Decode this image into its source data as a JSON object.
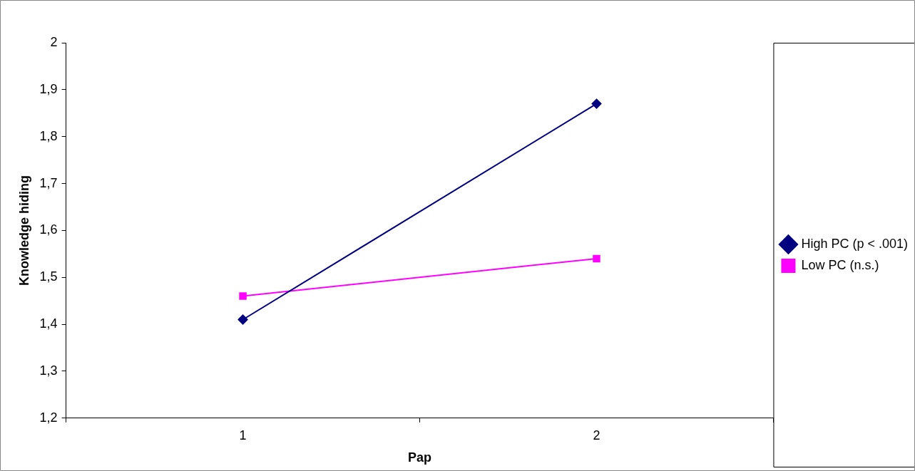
{
  "chart_data": {
    "type": "line",
    "xlabel": "Pap",
    "ylabel": "Knowledge hiding",
    "categories": [
      "1",
      "2"
    ],
    "series": [
      {
        "name": "High PC (p < .001)",
        "color": "#000080",
        "values": [
          1.41,
          1.87
        ],
        "marker": "diamond"
      },
      {
        "name": "Low PC (n.s.)",
        "color": "#ff00ff",
        "values": [
          1.46,
          1.54
        ],
        "marker": "square"
      }
    ],
    "ylim": [
      1.2,
      2
    ],
    "yticks": [
      {
        "value": 1.2,
        "label": "1,2"
      },
      {
        "value": 1.3,
        "label": "1,3"
      },
      {
        "value": 1.4,
        "label": "1,4"
      },
      {
        "value": 1.5,
        "label": "1,5"
      },
      {
        "value": 1.6,
        "label": "1,6"
      },
      {
        "value": 1.7,
        "label": "1,7"
      },
      {
        "value": 1.8,
        "label": "1,8"
      },
      {
        "value": 1.9,
        "label": "1,9"
      },
      {
        "value": 2,
        "label": "2"
      }
    ],
    "grid": false,
    "legend": "right",
    "line_style": "solid"
  }
}
